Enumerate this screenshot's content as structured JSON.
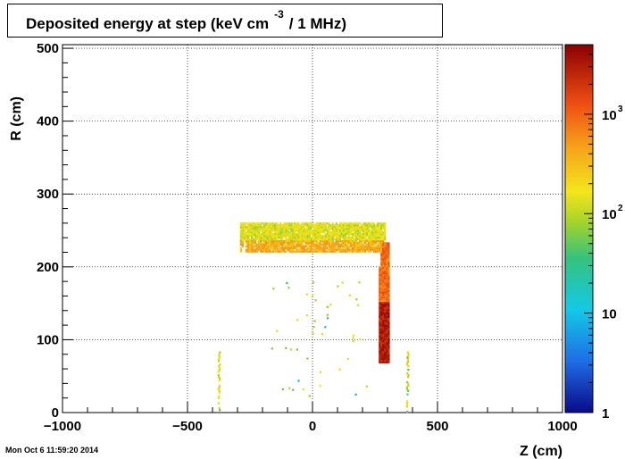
{
  "title": {
    "main": "Deposited energy at step (keV cm",
    "exponent": "-3",
    "suffix": "/ 1 MHz)"
  },
  "footer": {
    "timestamp": "Mon Oct  6 11:59:20 2014"
  },
  "chart_data": {
    "type": "heatmap",
    "title": "Deposited energy at step (keV cm^-3 / 1 MHz)",
    "xlabel": "Z (cm)",
    "ylabel": "R (cm)",
    "xlim": [
      -1000,
      1000
    ],
    "ylim": [
      0,
      505
    ],
    "xticks": [
      -1000,
      -500,
      0,
      500,
      1000
    ],
    "yticks": [
      0,
      100,
      200,
      300,
      400,
      500
    ],
    "grid": true,
    "colorbar": {
      "scale": "log",
      "range": [
        1,
        5000
      ],
      "ticks": [
        {
          "value": 1,
          "label": "1"
        },
        {
          "value": 10,
          "label": "10"
        },
        {
          "value": 100,
          "label": "10",
          "sup": "2"
        },
        {
          "value": 1000,
          "label": "10",
          "sup": "3"
        }
      ]
    },
    "regions": [
      {
        "name": "horizontal band",
        "z": [
          -290,
          290
        ],
        "r": [
          220,
          260
        ],
        "level": "~100-400"
      },
      {
        "name": "vertical band",
        "z": [
          265,
          305
        ],
        "r": [
          68,
          230
        ],
        "level": "~1000-5000"
      },
      {
        "name": "left edge streak",
        "z": [
          -382,
          -372
        ],
        "r": [
          0,
          80
        ],
        "level": "~100"
      },
      {
        "name": "right edge streak",
        "z": [
          372,
          382
        ],
        "r": [
          0,
          80
        ],
        "level": "~100"
      }
    ],
    "colors": {
      "high": "#8b0000",
      "mid": "#f3e61a",
      "low": "#0a0a8a",
      "grid": "#000000"
    }
  }
}
